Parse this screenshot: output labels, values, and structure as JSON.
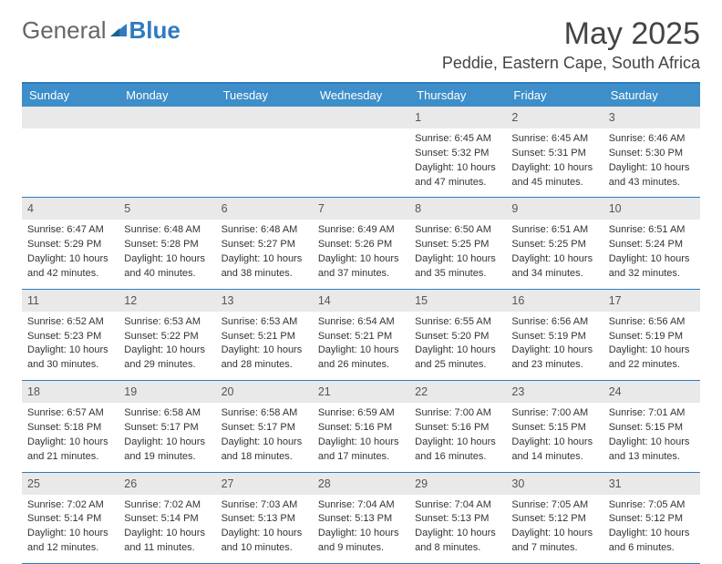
{
  "brand": {
    "part1": "General",
    "part2": "Blue",
    "accent": "#2f7bbf"
  },
  "title": "May 2025",
  "location": "Peddie, Eastern Cape, South Africa",
  "dow": [
    "Sunday",
    "Monday",
    "Tuesday",
    "Wednesday",
    "Thursday",
    "Friday",
    "Saturday"
  ],
  "style": {
    "header_bg": "#3d8ec9",
    "header_border": "#2f7bbf",
    "daynum_bg": "#e9e9e9",
    "text_color": "#333333",
    "title_fontsize": 34,
    "location_fontsize": 18,
    "dow_fontsize": 13,
    "info_fontsize": 11
  },
  "weeks": [
    [
      {
        "blank": true
      },
      {
        "blank": true
      },
      {
        "blank": true
      },
      {
        "blank": true
      },
      {
        "n": "1",
        "sunrise": "Sunrise: 6:45 AM",
        "sunset": "Sunset: 5:32 PM",
        "day1": "Daylight: 10 hours",
        "day2": "and 47 minutes."
      },
      {
        "n": "2",
        "sunrise": "Sunrise: 6:45 AM",
        "sunset": "Sunset: 5:31 PM",
        "day1": "Daylight: 10 hours",
        "day2": "and 45 minutes."
      },
      {
        "n": "3",
        "sunrise": "Sunrise: 6:46 AM",
        "sunset": "Sunset: 5:30 PM",
        "day1": "Daylight: 10 hours",
        "day2": "and 43 minutes."
      }
    ],
    [
      {
        "n": "4",
        "sunrise": "Sunrise: 6:47 AM",
        "sunset": "Sunset: 5:29 PM",
        "day1": "Daylight: 10 hours",
        "day2": "and 42 minutes."
      },
      {
        "n": "5",
        "sunrise": "Sunrise: 6:48 AM",
        "sunset": "Sunset: 5:28 PM",
        "day1": "Daylight: 10 hours",
        "day2": "and 40 minutes."
      },
      {
        "n": "6",
        "sunrise": "Sunrise: 6:48 AM",
        "sunset": "Sunset: 5:27 PM",
        "day1": "Daylight: 10 hours",
        "day2": "and 38 minutes."
      },
      {
        "n": "7",
        "sunrise": "Sunrise: 6:49 AM",
        "sunset": "Sunset: 5:26 PM",
        "day1": "Daylight: 10 hours",
        "day2": "and 37 minutes."
      },
      {
        "n": "8",
        "sunrise": "Sunrise: 6:50 AM",
        "sunset": "Sunset: 5:25 PM",
        "day1": "Daylight: 10 hours",
        "day2": "and 35 minutes."
      },
      {
        "n": "9",
        "sunrise": "Sunrise: 6:51 AM",
        "sunset": "Sunset: 5:25 PM",
        "day1": "Daylight: 10 hours",
        "day2": "and 34 minutes."
      },
      {
        "n": "10",
        "sunrise": "Sunrise: 6:51 AM",
        "sunset": "Sunset: 5:24 PM",
        "day1": "Daylight: 10 hours",
        "day2": "and 32 minutes."
      }
    ],
    [
      {
        "n": "11",
        "sunrise": "Sunrise: 6:52 AM",
        "sunset": "Sunset: 5:23 PM",
        "day1": "Daylight: 10 hours",
        "day2": "and 30 minutes."
      },
      {
        "n": "12",
        "sunrise": "Sunrise: 6:53 AM",
        "sunset": "Sunset: 5:22 PM",
        "day1": "Daylight: 10 hours",
        "day2": "and 29 minutes."
      },
      {
        "n": "13",
        "sunrise": "Sunrise: 6:53 AM",
        "sunset": "Sunset: 5:21 PM",
        "day1": "Daylight: 10 hours",
        "day2": "and 28 minutes."
      },
      {
        "n": "14",
        "sunrise": "Sunrise: 6:54 AM",
        "sunset": "Sunset: 5:21 PM",
        "day1": "Daylight: 10 hours",
        "day2": "and 26 minutes."
      },
      {
        "n": "15",
        "sunrise": "Sunrise: 6:55 AM",
        "sunset": "Sunset: 5:20 PM",
        "day1": "Daylight: 10 hours",
        "day2": "and 25 minutes."
      },
      {
        "n": "16",
        "sunrise": "Sunrise: 6:56 AM",
        "sunset": "Sunset: 5:19 PM",
        "day1": "Daylight: 10 hours",
        "day2": "and 23 minutes."
      },
      {
        "n": "17",
        "sunrise": "Sunrise: 6:56 AM",
        "sunset": "Sunset: 5:19 PM",
        "day1": "Daylight: 10 hours",
        "day2": "and 22 minutes."
      }
    ],
    [
      {
        "n": "18",
        "sunrise": "Sunrise: 6:57 AM",
        "sunset": "Sunset: 5:18 PM",
        "day1": "Daylight: 10 hours",
        "day2": "and 21 minutes."
      },
      {
        "n": "19",
        "sunrise": "Sunrise: 6:58 AM",
        "sunset": "Sunset: 5:17 PM",
        "day1": "Daylight: 10 hours",
        "day2": "and 19 minutes."
      },
      {
        "n": "20",
        "sunrise": "Sunrise: 6:58 AM",
        "sunset": "Sunset: 5:17 PM",
        "day1": "Daylight: 10 hours",
        "day2": "and 18 minutes."
      },
      {
        "n": "21",
        "sunrise": "Sunrise: 6:59 AM",
        "sunset": "Sunset: 5:16 PM",
        "day1": "Daylight: 10 hours",
        "day2": "and 17 minutes."
      },
      {
        "n": "22",
        "sunrise": "Sunrise: 7:00 AM",
        "sunset": "Sunset: 5:16 PM",
        "day1": "Daylight: 10 hours",
        "day2": "and 16 minutes."
      },
      {
        "n": "23",
        "sunrise": "Sunrise: 7:00 AM",
        "sunset": "Sunset: 5:15 PM",
        "day1": "Daylight: 10 hours",
        "day2": "and 14 minutes."
      },
      {
        "n": "24",
        "sunrise": "Sunrise: 7:01 AM",
        "sunset": "Sunset: 5:15 PM",
        "day1": "Daylight: 10 hours",
        "day2": "and 13 minutes."
      }
    ],
    [
      {
        "n": "25",
        "sunrise": "Sunrise: 7:02 AM",
        "sunset": "Sunset: 5:14 PM",
        "day1": "Daylight: 10 hours",
        "day2": "and 12 minutes."
      },
      {
        "n": "26",
        "sunrise": "Sunrise: 7:02 AM",
        "sunset": "Sunset: 5:14 PM",
        "day1": "Daylight: 10 hours",
        "day2": "and 11 minutes."
      },
      {
        "n": "27",
        "sunrise": "Sunrise: 7:03 AM",
        "sunset": "Sunset: 5:13 PM",
        "day1": "Daylight: 10 hours",
        "day2": "and 10 minutes."
      },
      {
        "n": "28",
        "sunrise": "Sunrise: 7:04 AM",
        "sunset": "Sunset: 5:13 PM",
        "day1": "Daylight: 10 hours",
        "day2": "and 9 minutes."
      },
      {
        "n": "29",
        "sunrise": "Sunrise: 7:04 AM",
        "sunset": "Sunset: 5:13 PM",
        "day1": "Daylight: 10 hours",
        "day2": "and 8 minutes."
      },
      {
        "n": "30",
        "sunrise": "Sunrise: 7:05 AM",
        "sunset": "Sunset: 5:12 PM",
        "day1": "Daylight: 10 hours",
        "day2": "and 7 minutes."
      },
      {
        "n": "31",
        "sunrise": "Sunrise: 7:05 AM",
        "sunset": "Sunset: 5:12 PM",
        "day1": "Daylight: 10 hours",
        "day2": "and 6 minutes."
      }
    ]
  ]
}
